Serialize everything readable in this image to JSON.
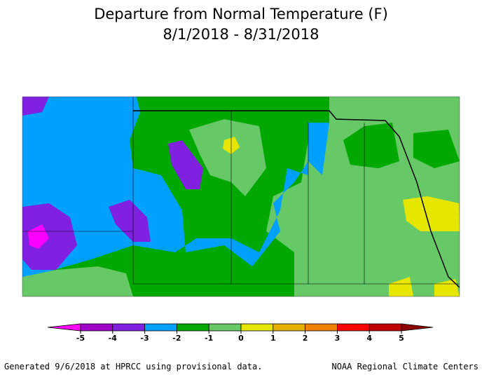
{
  "title": {
    "line1": "Departure from Normal Temperature (F)",
    "line2": "8/1/2018 - 8/31/2018"
  },
  "legend": {
    "ticks": [
      -5,
      -4,
      -3,
      -2,
      -1,
      0,
      1,
      2,
      3,
      4,
      5
    ],
    "low_color": "#ff00ff",
    "high_color": "#8b0000",
    "colors": [
      "#a000c8",
      "#8020e0",
      "#00a0ff",
      "#00a800",
      "#66c866",
      "#e6e600",
      "#e6b000",
      "#f08000",
      "#ff0000",
      "#c00000"
    ]
  },
  "footer": {
    "left": "Generated 9/6/2018 at HPRCC using provisional data.",
    "right": "NOAA Regional Climate Centers"
  }
}
